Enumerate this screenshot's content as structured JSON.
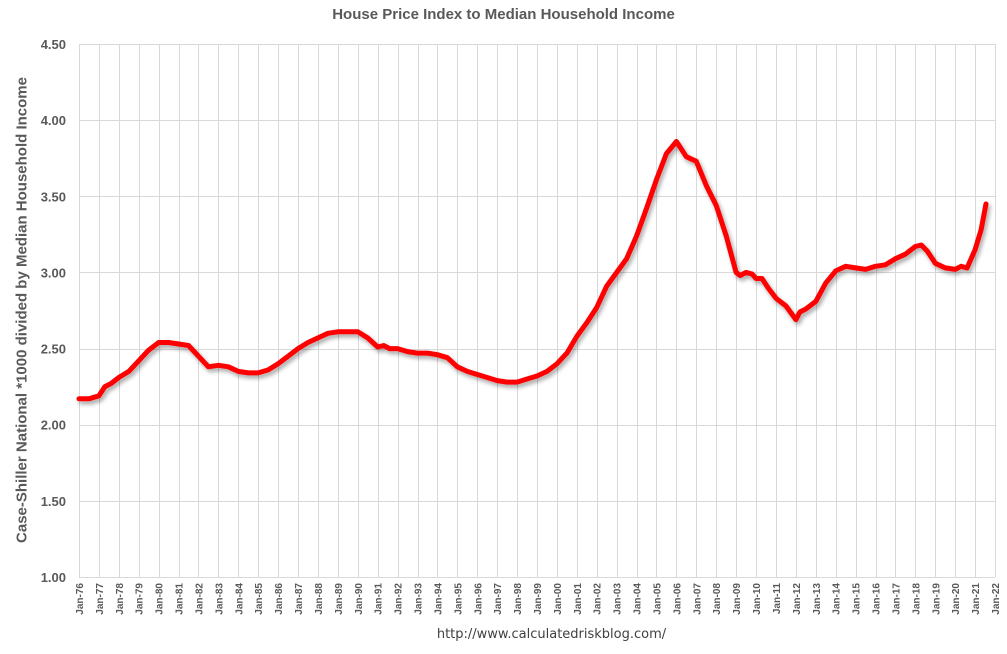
{
  "chart_data": {
    "type": "line",
    "title": "House Price Index to Median Household Income",
    "xlabel": "",
    "ylabel": "Case-Shiller National *1000 divided by Median Household Income",
    "source": "http://www.calculatedriskblog.com/",
    "ylim": [
      1.0,
      4.5
    ],
    "yticks": [
      "1.00",
      "1.50",
      "2.00",
      "2.50",
      "3.00",
      "3.50",
      "4.00",
      "4.50"
    ],
    "xticks": [
      "Jan-76",
      "Jan-77",
      "Jan-78",
      "Jan-79",
      "Jan-80",
      "Jan-81",
      "Jan-82",
      "Jan-83",
      "Jan-84",
      "Jan-85",
      "Jan-86",
      "Jan-87",
      "Jan-88",
      "Jan-89",
      "Jan-90",
      "Jan-91",
      "Jan-92",
      "Jan-93",
      "Jan-94",
      "Jan-95",
      "Jan-96",
      "Jan-97",
      "Jan-98",
      "Jan-99",
      "Jan-00",
      "Jan-01",
      "Jan-02",
      "Jan-03",
      "Jan-04",
      "Jan-05",
      "Jan-06",
      "Jan-07",
      "Jan-08",
      "Jan-09",
      "Jan-10",
      "Jan-11",
      "Jan-12",
      "Jan-13",
      "Jan-14",
      "Jan-15",
      "Jan-16",
      "Jan-17",
      "Jan-18",
      "Jan-19",
      "Jan-20",
      "Jan-21",
      "Jan-22"
    ],
    "grid": true,
    "legend": "none",
    "series": [
      {
        "name": "House Price Index to Median Household Income",
        "color": "#ff0000",
        "x": [
          1976.0,
          1976.5,
          1977.0,
          1977.3,
          1977.6,
          1978.0,
          1978.5,
          1979.0,
          1979.5,
          1980.0,
          1980.5,
          1981.0,
          1981.5,
          1982.0,
          1982.5,
          1983.0,
          1983.5,
          1984.0,
          1984.5,
          1985.0,
          1985.5,
          1986.0,
          1986.5,
          1987.0,
          1987.5,
          1988.0,
          1988.5,
          1989.0,
          1989.5,
          1990.0,
          1990.5,
          1991.0,
          1991.3,
          1991.6,
          1992.0,
          1992.5,
          1993.0,
          1993.5,
          1994.0,
          1994.5,
          1995.0,
          1995.5,
          1996.0,
          1996.5,
          1997.0,
          1997.5,
          1998.0,
          1998.5,
          1999.0,
          1999.5,
          2000.0,
          2000.5,
          2001.0,
          2001.5,
          2002.0,
          2002.5,
          2003.0,
          2003.5,
          2004.0,
          2004.5,
          2005.0,
          2005.5,
          2006.0,
          2006.2,
          2006.5,
          2007.0,
          2007.5,
          2008.0,
          2008.5,
          2009.0,
          2009.2,
          2009.5,
          2009.8,
          2010.0,
          2010.3,
          2010.6,
          2011.0,
          2011.5,
          2012.0,
          2012.2,
          2012.5,
          2013.0,
          2013.5,
          2014.0,
          2014.5,
          2015.0,
          2015.5,
          2016.0,
          2016.5,
          2017.0,
          2017.5,
          2018.0,
          2018.3,
          2018.6,
          2019.0,
          2019.5,
          2020.0,
          2020.3,
          2020.6,
          2021.0,
          2021.3,
          2021.55
        ],
        "values": [
          2.17,
          2.17,
          2.19,
          2.25,
          2.27,
          2.31,
          2.35,
          2.42,
          2.49,
          2.54,
          2.54,
          2.53,
          2.52,
          2.45,
          2.38,
          2.39,
          2.38,
          2.35,
          2.34,
          2.34,
          2.36,
          2.4,
          2.45,
          2.5,
          2.54,
          2.57,
          2.6,
          2.61,
          2.61,
          2.61,
          2.57,
          2.51,
          2.52,
          2.5,
          2.5,
          2.48,
          2.47,
          2.47,
          2.46,
          2.44,
          2.38,
          2.35,
          2.33,
          2.31,
          2.29,
          2.28,
          2.28,
          2.3,
          2.32,
          2.35,
          2.4,
          2.47,
          2.58,
          2.67,
          2.77,
          2.91,
          3.0,
          3.09,
          3.24,
          3.42,
          3.61,
          3.78,
          3.86,
          3.82,
          3.76,
          3.73,
          3.57,
          3.44,
          3.24,
          3.0,
          2.98,
          3.0,
          2.99,
          2.96,
          2.96,
          2.9,
          2.83,
          2.78,
          2.69,
          2.74,
          2.76,
          2.81,
          2.93,
          3.01,
          3.04,
          3.03,
          3.02,
          3.04,
          3.05,
          3.09,
          3.12,
          3.17,
          3.18,
          3.14,
          3.06,
          3.03,
          3.02,
          3.04,
          3.03,
          3.15,
          3.28,
          3.45
        ]
      }
    ]
  }
}
